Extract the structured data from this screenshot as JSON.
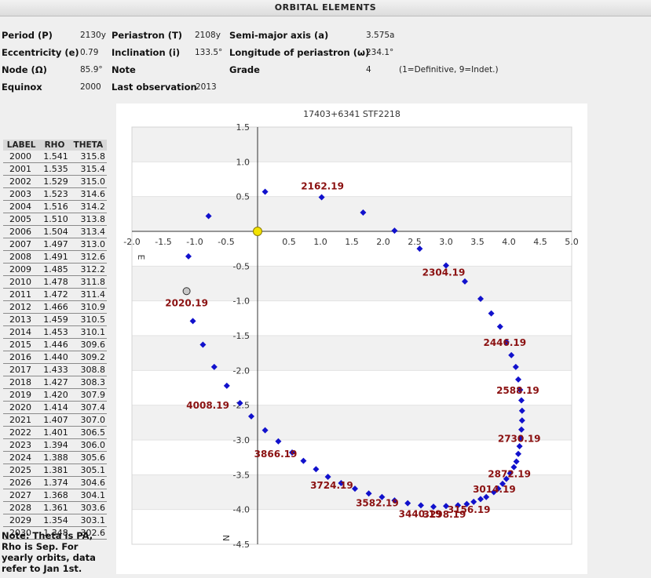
{
  "header": {
    "title": "ORBITAL ELEMENTS"
  },
  "elements": {
    "period_label": "Period (P)",
    "period_value": "2130y",
    "periastron_label": "Periastron (T)",
    "periastron_value": "2108y",
    "semimajor_label": "Semi-major axis (a)",
    "semimajor_value": "3.575a",
    "ecc_label": "Eccentricity (e)",
    "ecc_value": "0.79",
    "incl_label": "Inclination (i)",
    "incl_value": "133.5°",
    "lonperi_label": "Longitude of periastron (ω)",
    "lonperi_value": "234.1°",
    "node_label": "Node (Ω)",
    "node_value": "85.9°",
    "note_label": "Note",
    "grade_label": "Grade",
    "grade_value": "4",
    "grade_hint": "(1=Definitive, 9=Indet.)",
    "equinox_label": "Equinox",
    "equinox_value": "2000",
    "lastobs_label": "Last observation",
    "lastobs_value": "2013"
  },
  "ephemeris": {
    "headers": [
      "LABEL",
      "RHO",
      "THETA"
    ],
    "rows": [
      [
        "2000",
        "1.541",
        "315.8"
      ],
      [
        "2001",
        "1.535",
        "315.4"
      ],
      [
        "2002",
        "1.529",
        "315.0"
      ],
      [
        "2003",
        "1.523",
        "314.6"
      ],
      [
        "2004",
        "1.516",
        "314.2"
      ],
      [
        "2005",
        "1.510",
        "313.8"
      ],
      [
        "2006",
        "1.504",
        "313.4"
      ],
      [
        "2007",
        "1.497",
        "313.0"
      ],
      [
        "2008",
        "1.491",
        "312.6"
      ],
      [
        "2009",
        "1.485",
        "312.2"
      ],
      [
        "2010",
        "1.478",
        "311.8"
      ],
      [
        "2011",
        "1.472",
        "311.4"
      ],
      [
        "2012",
        "1.466",
        "310.9"
      ],
      [
        "2013",
        "1.459",
        "310.5"
      ],
      [
        "2014",
        "1.453",
        "310.1"
      ],
      [
        "2015",
        "1.446",
        "309.6"
      ],
      [
        "2016",
        "1.440",
        "309.2"
      ],
      [
        "2017",
        "1.433",
        "308.8"
      ],
      [
        "2018",
        "1.427",
        "308.3"
      ],
      [
        "2019",
        "1.420",
        "307.9"
      ],
      [
        "2020",
        "1.414",
        "307.4"
      ],
      [
        "2021",
        "1.407",
        "307.0"
      ],
      [
        "2022",
        "1.401",
        "306.5"
      ],
      [
        "2023",
        "1.394",
        "306.0"
      ],
      [
        "2024",
        "1.388",
        "305.6"
      ],
      [
        "2025",
        "1.381",
        "305.1"
      ],
      [
        "2026",
        "1.374",
        "304.6"
      ],
      [
        "2027",
        "1.368",
        "304.1"
      ],
      [
        "2028",
        "1.361",
        "303.6"
      ],
      [
        "2029",
        "1.354",
        "303.1"
      ],
      [
        "2030",
        "1.348",
        "302.6"
      ]
    ]
  },
  "note": "Note: Theta is PA, Rho is Sep. For yearly orbits, data refer to Jan 1st.",
  "chart_data": {
    "type": "scatter",
    "title": "17403+6341  STF2218",
    "xlim": [
      -2.0,
      5.0
    ],
    "ylim": [
      -4.5,
      1.5
    ],
    "xticks": [
      "-2.0",
      "-1.5",
      "-1.0",
      "-0.5",
      "0.5",
      "1.0",
      "1.5",
      "2.0",
      "2.5",
      "3.0",
      "3.5",
      "4.0",
      "4.5",
      "5.0"
    ],
    "xtick_values": [
      -2.0,
      -1.5,
      -1.0,
      -0.5,
      0.5,
      1.0,
      1.5,
      2.0,
      2.5,
      3.0,
      3.5,
      4.0,
      4.5,
      5.0
    ],
    "yticks": [
      "1.5",
      "1.0",
      "0.5",
      "-0.5",
      "-1.0",
      "-1.5",
      "-2.0",
      "-2.5",
      "-3.0",
      "-3.5",
      "-4.0",
      "-4.5"
    ],
    "ytick_values": [
      1.5,
      1.0,
      0.5,
      -0.5,
      -1.0,
      -1.5,
      -2.0,
      -2.5,
      -3.0,
      -3.5,
      -4.0,
      -4.5
    ],
    "axis_labels": {
      "east": "E",
      "north": "N"
    },
    "primary": [
      0.0,
      0.0
    ],
    "current_position": [
      -1.13,
      -0.86
    ],
    "colors": {
      "points": "#1111cc",
      "labels": "#8b1111",
      "primary": "#f3e300",
      "current": "#c8c8c8"
    },
    "points": [
      [
        0.12,
        0.57
      ],
      [
        -0.78,
        0.22
      ],
      [
        -1.1,
        -0.36
      ],
      [
        -1.03,
        -1.29
      ],
      [
        -0.87,
        -1.63
      ],
      [
        -0.69,
        -1.95
      ],
      [
        -0.49,
        -2.22
      ],
      [
        -0.28,
        -2.47
      ],
      [
        -0.1,
        -2.66
      ],
      [
        0.12,
        -2.86
      ],
      [
        0.33,
        -3.02
      ],
      [
        0.55,
        -3.18
      ],
      [
        0.73,
        -3.3
      ],
      [
        0.93,
        -3.42
      ],
      [
        1.12,
        -3.53
      ],
      [
        1.33,
        -3.62
      ],
      [
        1.55,
        -3.7
      ],
      [
        1.77,
        -3.77
      ],
      [
        1.98,
        -3.82
      ],
      [
        2.18,
        -3.87
      ],
      [
        2.39,
        -3.91
      ],
      [
        2.6,
        -3.94
      ],
      [
        2.8,
        -3.96
      ],
      [
        3.0,
        -3.95
      ],
      [
        3.19,
        -3.94
      ],
      [
        3.33,
        -3.92
      ],
      [
        3.44,
        -3.89
      ],
      [
        3.55,
        -3.85
      ],
      [
        3.64,
        -3.82
      ],
      [
        3.76,
        -3.75
      ],
      [
        3.83,
        -3.7
      ],
      [
        3.9,
        -3.63
      ],
      [
        3.96,
        -3.56
      ],
      [
        4.02,
        -3.48
      ],
      [
        4.08,
        -3.39
      ],
      [
        4.12,
        -3.31
      ],
      [
        4.15,
        -3.2
      ],
      [
        4.17,
        -3.09
      ],
      [
        4.19,
        -2.97
      ],
      [
        4.2,
        -2.85
      ],
      [
        4.21,
        -2.72
      ],
      [
        4.21,
        -2.58
      ],
      [
        4.2,
        -2.43
      ],
      [
        4.18,
        -2.28
      ],
      [
        4.15,
        -2.13
      ],
      [
        4.11,
        -1.95
      ],
      [
        4.04,
        -1.78
      ],
      [
        3.96,
        -1.59
      ],
      [
        3.86,
        -1.37
      ],
      [
        3.72,
        -1.18
      ],
      [
        3.55,
        -0.97
      ],
      [
        3.3,
        -0.72
      ],
      [
        3.0,
        -0.49
      ],
      [
        2.58,
        -0.25
      ],
      [
        2.18,
        0.01
      ],
      [
        1.68,
        0.27
      ],
      [
        1.02,
        0.49
      ]
    ],
    "point_labels": [
      {
        "text": "2162.19",
        "x": 1.02,
        "y": 0.49
      },
      {
        "text": "2304.19",
        "x": 3.0,
        "y": -0.49
      },
      {
        "text": "2446.19",
        "x": 3.96,
        "y": -1.59
      },
      {
        "text": "2588.19",
        "x": 4.18,
        "y": -2.28
      },
      {
        "text": "2730.19",
        "x": 4.19,
        "y": -2.97
      },
      {
        "text": "2872.19",
        "x": 4.02,
        "y": -3.48
      },
      {
        "text": "3014.19",
        "x": 3.83,
        "y": -3.7
      },
      {
        "text": "3156.19",
        "x": 3.44,
        "y": -3.89
      },
      {
        "text": "3298.19",
        "x": 3.0,
        "y": -3.95
      },
      {
        "text": "3440.19",
        "x": 2.6,
        "y": -3.94
      },
      {
        "text": "3582.19",
        "x": 1.98,
        "y": -3.82
      },
      {
        "text": "3724.19",
        "x": 1.33,
        "y": -3.62
      },
      {
        "text": "3866.19",
        "x": 0.55,
        "y": -3.18
      },
      {
        "text": "4008.19",
        "x": -0.28,
        "y": -2.47
      },
      {
        "text": "2020.19",
        "x": -1.13,
        "y": -0.86
      }
    ]
  }
}
